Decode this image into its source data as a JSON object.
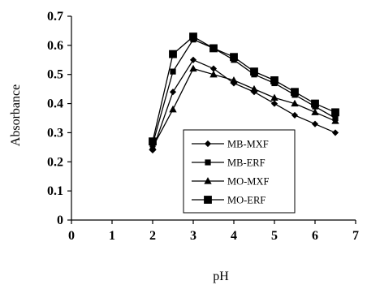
{
  "chart_data": {
    "type": "line",
    "xlabel": "pH",
    "ylabel": "Absorbance",
    "xlim": [
      0,
      7
    ],
    "ylim": [
      0,
      0.7
    ],
    "xticks": [
      "0",
      "1",
      "2",
      "3",
      "4",
      "5",
      "6",
      "7"
    ],
    "yticks": [
      "0",
      "0.1",
      "0.2",
      "0.3",
      "0.4",
      "0.5",
      "0.6",
      "0.7"
    ],
    "grid": false,
    "legend_position": "bottom-right",
    "x": [
      2,
      2.5,
      3,
      3.5,
      4,
      4.5,
      5,
      5.5,
      6,
      6.5
    ],
    "series": [
      {
        "name": "MB-MXF",
        "marker": "diamond",
        "values": [
          0.24,
          0.44,
          0.55,
          0.52,
          0.47,
          0.44,
          0.4,
          0.36,
          0.33,
          0.3
        ]
      },
      {
        "name": "MB-ERF",
        "marker": "square",
        "values": [
          0.26,
          0.51,
          0.62,
          0.59,
          0.55,
          0.5,
          0.47,
          0.43,
          0.39,
          0.35
        ]
      },
      {
        "name": "MO-MXF",
        "marker": "triangle",
        "values": [
          0.25,
          0.38,
          0.52,
          0.5,
          0.48,
          0.45,
          0.42,
          0.4,
          0.37,
          0.34
        ]
      },
      {
        "name": "MO-ERF",
        "marker": "square-large",
        "values": [
          0.27,
          0.57,
          0.63,
          0.59,
          0.56,
          0.51,
          0.48,
          0.44,
          0.4,
          0.37
        ]
      }
    ],
    "colors": {
      "line": "#000000",
      "background": "#ffffff"
    }
  }
}
